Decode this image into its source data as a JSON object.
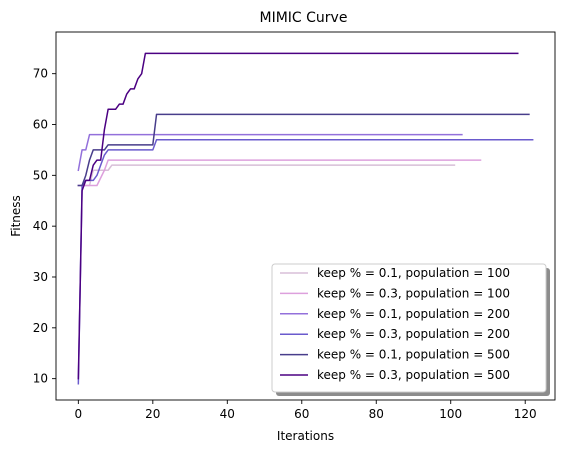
{
  "chart_data": {
    "type": "line",
    "title": "MIMIC Curve",
    "xlabel": "Iterations",
    "ylabel": "Fitness",
    "xlim": [
      -6,
      128
    ],
    "ylim": [
      5.8,
      78.2
    ],
    "xticks": [
      0,
      20,
      40,
      60,
      80,
      100,
      120
    ],
    "yticks": [
      10,
      20,
      30,
      40,
      50,
      60,
      70
    ],
    "grid": false,
    "legend_position": "lower-right",
    "series": [
      {
        "name": "keep % = 0.1, population = 100",
        "color": "#d8bfd8",
        "x": [
          0,
          3,
          4,
          8,
          9,
          101
        ],
        "y": [
          48,
          48,
          51,
          51,
          52,
          52
        ]
      },
      {
        "name": "keep % = 0.3, population = 100",
        "color": "#dda0dd",
        "x": [
          0,
          5,
          7,
          8,
          108
        ],
        "y": [
          48,
          48,
          51,
          53,
          53
        ]
      },
      {
        "name": "keep % = 0.1, population = 200",
        "color": "#9370db",
        "x": [
          0,
          1,
          2,
          3,
          103
        ],
        "y": [
          51,
          55,
          55,
          58,
          58
        ]
      },
      {
        "name": "keep % = 0.3, population = 200",
        "color": "#6a5acd",
        "x": [
          0,
          1,
          2,
          4,
          5,
          6,
          7,
          8,
          20,
          21,
          122
        ],
        "y": [
          9,
          48,
          49,
          49,
          50,
          52,
          54,
          55,
          55,
          57,
          57
        ]
      },
      {
        "name": "keep % = 0.1, population = 500",
        "color": "#483d8b",
        "x": [
          0,
          1,
          2,
          3,
          4,
          7,
          8,
          20,
          21,
          121
        ],
        "y": [
          48,
          48,
          50,
          53,
          55,
          55,
          56,
          56,
          62,
          62
        ]
      },
      {
        "name": "keep % = 0.3, population = 500",
        "color": "#4b0082",
        "x": [
          0,
          1,
          2,
          3,
          4,
          5,
          6,
          7,
          8,
          10,
          11,
          12,
          13,
          14,
          15,
          16,
          17,
          18,
          118
        ],
        "y": [
          10,
          47,
          49,
          49,
          52,
          53,
          53,
          59,
          63,
          63,
          64,
          64,
          66,
          67,
          67,
          69,
          70,
          74,
          74
        ]
      }
    ]
  }
}
